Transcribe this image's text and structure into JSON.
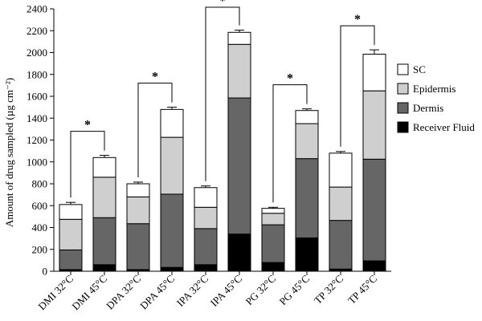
{
  "chart_data": {
    "type": "bar",
    "stacked": true,
    "title": "",
    "xlabel": "",
    "ylabel": "Amount of drug sampled (µg cm⁻²)",
    "ylim": [
      0,
      2400
    ],
    "yticks": [
      0,
      200,
      400,
      600,
      800,
      1000,
      1200,
      1400,
      1600,
      1800,
      2000,
      2200,
      2400
    ],
    "categories": [
      "DMI 32°C",
      "DMI 45°C",
      "DPA 32°C",
      "DPA 45°C",
      "IPA 32°C",
      "IPA 45°C",
      "PG 32°C",
      "PG 45°C",
      "TP 32°C",
      "TP 45°C"
    ],
    "series": [
      {
        "name": "Receiver Fluid",
        "color": "#000000",
        "values": [
          15,
          60,
          15,
          35,
          60,
          340,
          80,
          305,
          20,
          95
        ],
        "errors": [
          5,
          15,
          8,
          10,
          20,
          70,
          20,
          95,
          8,
          25
        ]
      },
      {
        "name": "Dermis",
        "color": "#666666",
        "values": [
          180,
          430,
          420,
          670,
          330,
          1245,
          345,
          725,
          445,
          930
        ],
        "errors": [
          8,
          60,
          20,
          35,
          20,
          60,
          15,
          55,
          30,
          50
        ]
      },
      {
        "name": "Epidermis",
        "color": "#cfcfcf",
        "values": [
          280,
          370,
          245,
          520,
          195,
          490,
          105,
          320,
          305,
          625
        ],
        "errors": [
          35,
          35,
          25,
          20,
          45,
          25,
          15,
          25,
          55,
          75
        ]
      },
      {
        "name": "SC",
        "color": "#ffffff",
        "values": [
          135,
          180,
          120,
          255,
          180,
          110,
          45,
          120,
          310,
          335
        ],
        "errors": [
          20,
          20,
          15,
          20,
          15,
          20,
          10,
          15,
          15,
          40
        ]
      }
    ],
    "legend_order": [
      "SC",
      "Epidermis",
      "Dermis",
      "Receiver Fluid"
    ],
    "legend_position": "right",
    "significance": [
      {
        "pair": [
          0,
          1
        ],
        "label": "*"
      },
      {
        "pair": [
          2,
          3
        ],
        "label": "*"
      },
      {
        "pair": [
          4,
          5
        ],
        "label": "*"
      },
      {
        "pair": [
          6,
          7
        ],
        "label": "*"
      },
      {
        "pair": [
          8,
          9
        ],
        "label": "*"
      }
    ]
  }
}
